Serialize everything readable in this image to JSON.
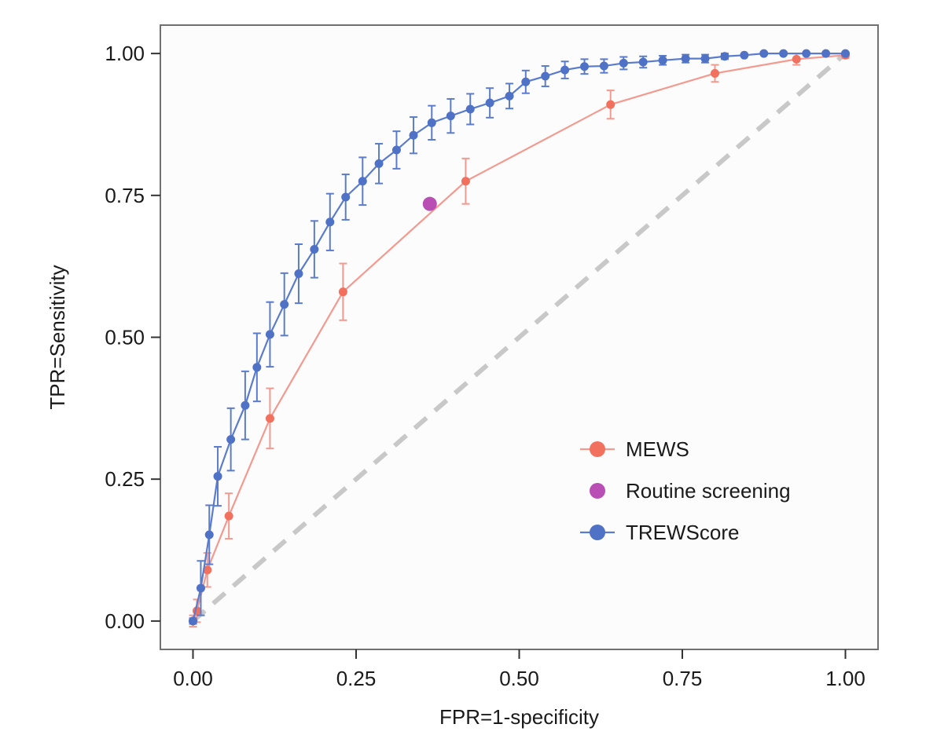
{
  "chart_data": {
    "type": "line",
    "title": "",
    "xlabel": "FPR=1-specificity",
    "ylabel": "TPR=Sensitivity",
    "xlim": [
      -0.05,
      1.05
    ],
    "ylim": [
      -0.05,
      1.05
    ],
    "x_ticks": [
      0,
      0.25,
      0.5,
      0.75,
      1
    ],
    "x_tick_labels": [
      "0.00",
      "0.25",
      "0.50",
      "0.75",
      "1.00"
    ],
    "y_ticks": [
      0,
      0.25,
      0.5,
      0.75,
      1
    ],
    "y_tick_labels": [
      "0.00",
      "0.25",
      "0.50",
      "0.75",
      "1.00"
    ],
    "grid": false,
    "legend_position": "bottom-right",
    "reference_line": {
      "x": [
        0,
        1
      ],
      "y": [
        0,
        1
      ],
      "style": "dashed",
      "color": "#c8c8c8"
    },
    "series": [
      {
        "name": "MEWS",
        "color": "#f2705e",
        "line_color": "#f39a90",
        "marker": "circle",
        "points": [
          {
            "x": 0.0,
            "y": 0.0,
            "err": 0.01
          },
          {
            "x": 0.006,
            "y": 0.018,
            "err": 0.02
          },
          {
            "x": 0.022,
            "y": 0.09,
            "err": 0.03
          },
          {
            "x": 0.055,
            "y": 0.185,
            "err": 0.04
          },
          {
            "x": 0.118,
            "y": 0.357,
            "err": 0.053
          },
          {
            "x": 0.23,
            "y": 0.58,
            "err": 0.05
          },
          {
            "x": 0.418,
            "y": 0.775,
            "err": 0.04
          },
          {
            "x": 0.64,
            "y": 0.91,
            "err": 0.025
          },
          {
            "x": 0.8,
            "y": 0.965,
            "err": 0.015
          },
          {
            "x": 0.925,
            "y": 0.99,
            "err": 0.01
          },
          {
            "x": 1.0,
            "y": 0.997,
            "err": 0.005
          }
        ]
      },
      {
        "name": "Routine screening",
        "color": "#b94fb5",
        "marker": "circle",
        "points": [
          {
            "x": 0.363,
            "y": 0.735
          }
        ]
      },
      {
        "name": "TREWScore",
        "color": "#4f72c6",
        "line_color": "#5b7ccc",
        "marker": "circle",
        "points": [
          {
            "x": 0.0,
            "y": 0.0,
            "err": 0.005
          },
          {
            "x": 0.012,
            "y": 0.058,
            "err": 0.048
          },
          {
            "x": 0.025,
            "y": 0.152,
            "err": 0.052
          },
          {
            "x": 0.038,
            "y": 0.255,
            "err": 0.052
          },
          {
            "x": 0.058,
            "y": 0.32,
            "err": 0.055
          },
          {
            "x": 0.08,
            "y": 0.38,
            "err": 0.06
          },
          {
            "x": 0.098,
            "y": 0.447,
            "err": 0.06
          },
          {
            "x": 0.118,
            "y": 0.505,
            "err": 0.057
          },
          {
            "x": 0.14,
            "y": 0.558,
            "err": 0.055
          },
          {
            "x": 0.162,
            "y": 0.612,
            "err": 0.052
          },
          {
            "x": 0.186,
            "y": 0.655,
            "err": 0.05
          },
          {
            "x": 0.21,
            "y": 0.703,
            "err": 0.05
          },
          {
            "x": 0.234,
            "y": 0.747,
            "err": 0.04
          },
          {
            "x": 0.26,
            "y": 0.775,
            "err": 0.042
          },
          {
            "x": 0.285,
            "y": 0.806,
            "err": 0.035
          },
          {
            "x": 0.312,
            "y": 0.83,
            "err": 0.033
          },
          {
            "x": 0.338,
            "y": 0.856,
            "err": 0.032
          },
          {
            "x": 0.366,
            "y": 0.878,
            "err": 0.03
          },
          {
            "x": 0.395,
            "y": 0.89,
            "err": 0.03
          },
          {
            "x": 0.425,
            "y": 0.902,
            "err": 0.027
          },
          {
            "x": 0.455,
            "y": 0.913,
            "err": 0.026
          },
          {
            "x": 0.485,
            "y": 0.925,
            "err": 0.022
          },
          {
            "x": 0.51,
            "y": 0.95,
            "err": 0.02
          },
          {
            "x": 0.54,
            "y": 0.96,
            "err": 0.018
          },
          {
            "x": 0.57,
            "y": 0.971,
            "err": 0.015
          },
          {
            "x": 0.6,
            "y": 0.977,
            "err": 0.013
          },
          {
            "x": 0.63,
            "y": 0.978,
            "err": 0.012
          },
          {
            "x": 0.66,
            "y": 0.983,
            "err": 0.011
          },
          {
            "x": 0.69,
            "y": 0.985,
            "err": 0.01
          },
          {
            "x": 0.72,
            "y": 0.988,
            "err": 0.008
          },
          {
            "x": 0.755,
            "y": 0.991,
            "err": 0.007
          },
          {
            "x": 0.785,
            "y": 0.991,
            "err": 0.007
          },
          {
            "x": 0.815,
            "y": 0.995,
            "err": 0.005
          },
          {
            "x": 0.845,
            "y": 0.997,
            "err": 0.004
          },
          {
            "x": 0.875,
            "y": 1.0,
            "err": 0.002
          },
          {
            "x": 0.905,
            "y": 1.0,
            "err": 0.002
          },
          {
            "x": 0.94,
            "y": 1.0,
            "err": 0.002
          },
          {
            "x": 0.97,
            "y": 1.0,
            "err": 0.002
          },
          {
            "x": 1.0,
            "y": 1.0,
            "err": 0.002
          }
        ]
      }
    ]
  }
}
